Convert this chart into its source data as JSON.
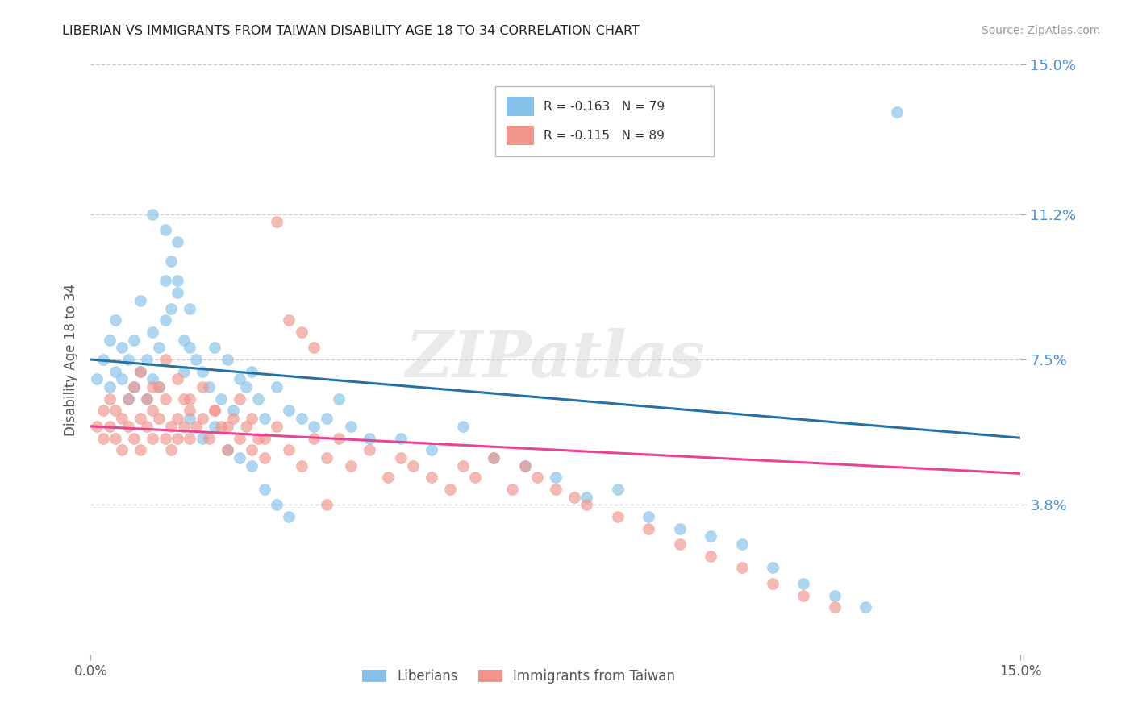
{
  "title": "LIBERIAN VS IMMIGRANTS FROM TAIWAN DISABILITY AGE 18 TO 34 CORRELATION CHART",
  "source": "Source: ZipAtlas.com",
  "ylabel": "Disability Age 18 to 34",
  "xlim": [
    0.0,
    0.15
  ],
  "ylim": [
    0.0,
    0.15
  ],
  "xtick_labels": [
    "0.0%",
    "15.0%"
  ],
  "ytick_labels": [
    "15.0%",
    "11.2%",
    "7.5%",
    "3.8%"
  ],
  "ytick_values": [
    0.15,
    0.112,
    0.075,
    0.038
  ],
  "grid_color": "#cccccc",
  "background_color": "#ffffff",
  "liberian_color": "#85C1E9",
  "taiwan_color": "#F1948A",
  "liberian_line_color": "#2471A3",
  "taiwan_line_color": "#E84393",
  "watermark_text": "ZIPatlas",
  "legend_r1": "R = -0.163",
  "legend_n1": "N = 79",
  "legend_r2": "R = -0.115",
  "legend_n2": "N = 89",
  "lib_x": [
    0.001,
    0.002,
    0.003,
    0.003,
    0.004,
    0.004,
    0.005,
    0.005,
    0.006,
    0.006,
    0.007,
    0.007,
    0.008,
    0.008,
    0.009,
    0.009,
    0.01,
    0.01,
    0.011,
    0.011,
    0.012,
    0.012,
    0.013,
    0.013,
    0.014,
    0.014,
    0.015,
    0.015,
    0.016,
    0.016,
    0.017,
    0.018,
    0.019,
    0.02,
    0.021,
    0.022,
    0.023,
    0.024,
    0.025,
    0.026,
    0.027,
    0.028,
    0.03,
    0.032,
    0.034,
    0.036,
    0.038,
    0.04,
    0.042,
    0.045,
    0.05,
    0.055,
    0.06,
    0.065,
    0.07,
    0.075,
    0.08,
    0.085,
    0.09,
    0.095,
    0.1,
    0.105,
    0.11,
    0.115,
    0.12,
    0.125,
    0.13,
    0.01,
    0.012,
    0.014,
    0.016,
    0.018,
    0.02,
    0.022,
    0.024,
    0.026,
    0.028,
    0.03,
    0.032
  ],
  "lib_y": [
    0.07,
    0.075,
    0.068,
    0.08,
    0.072,
    0.085,
    0.07,
    0.078,
    0.065,
    0.075,
    0.068,
    0.08,
    0.072,
    0.09,
    0.065,
    0.075,
    0.07,
    0.082,
    0.068,
    0.078,
    0.095,
    0.085,
    0.1,
    0.088,
    0.105,
    0.092,
    0.08,
    0.072,
    0.088,
    0.078,
    0.075,
    0.072,
    0.068,
    0.078,
    0.065,
    0.075,
    0.062,
    0.07,
    0.068,
    0.072,
    0.065,
    0.06,
    0.068,
    0.062,
    0.06,
    0.058,
    0.06,
    0.065,
    0.058,
    0.055,
    0.055,
    0.052,
    0.058,
    0.05,
    0.048,
    0.045,
    0.04,
    0.042,
    0.035,
    0.032,
    0.03,
    0.028,
    0.022,
    0.018,
    0.015,
    0.012,
    0.138,
    0.112,
    0.108,
    0.095,
    0.06,
    0.055,
    0.058,
    0.052,
    0.05,
    0.048,
    0.042,
    0.038,
    0.035
  ],
  "tai_x": [
    0.001,
    0.002,
    0.002,
    0.003,
    0.003,
    0.004,
    0.004,
    0.005,
    0.005,
    0.006,
    0.006,
    0.007,
    0.007,
    0.008,
    0.008,
    0.009,
    0.009,
    0.01,
    0.01,
    0.011,
    0.011,
    0.012,
    0.012,
    0.013,
    0.013,
    0.014,
    0.014,
    0.015,
    0.015,
    0.016,
    0.016,
    0.017,
    0.018,
    0.019,
    0.02,
    0.021,
    0.022,
    0.023,
    0.024,
    0.025,
    0.026,
    0.027,
    0.028,
    0.03,
    0.032,
    0.034,
    0.036,
    0.038,
    0.04,
    0.042,
    0.045,
    0.048,
    0.05,
    0.052,
    0.055,
    0.058,
    0.06,
    0.062,
    0.065,
    0.068,
    0.07,
    0.072,
    0.075,
    0.078,
    0.08,
    0.085,
    0.09,
    0.095,
    0.1,
    0.105,
    0.11,
    0.115,
    0.12,
    0.008,
    0.01,
    0.012,
    0.014,
    0.016,
    0.018,
    0.02,
    0.022,
    0.024,
    0.026,
    0.028,
    0.03,
    0.032,
    0.034,
    0.036,
    0.038
  ],
  "tai_y": [
    0.058,
    0.062,
    0.055,
    0.065,
    0.058,
    0.062,
    0.055,
    0.06,
    0.052,
    0.058,
    0.065,
    0.055,
    0.068,
    0.06,
    0.052,
    0.065,
    0.058,
    0.062,
    0.055,
    0.068,
    0.06,
    0.055,
    0.065,
    0.058,
    0.052,
    0.06,
    0.055,
    0.065,
    0.058,
    0.062,
    0.055,
    0.058,
    0.06,
    0.055,
    0.062,
    0.058,
    0.052,
    0.06,
    0.055,
    0.058,
    0.052,
    0.055,
    0.05,
    0.058,
    0.052,
    0.048,
    0.055,
    0.05,
    0.055,
    0.048,
    0.052,
    0.045,
    0.05,
    0.048,
    0.045,
    0.042,
    0.048,
    0.045,
    0.05,
    0.042,
    0.048,
    0.045,
    0.042,
    0.04,
    0.038,
    0.035,
    0.032,
    0.028,
    0.025,
    0.022,
    0.018,
    0.015,
    0.012,
    0.072,
    0.068,
    0.075,
    0.07,
    0.065,
    0.068,
    0.062,
    0.058,
    0.065,
    0.06,
    0.055,
    0.11,
    0.085,
    0.082,
    0.078,
    0.038
  ]
}
